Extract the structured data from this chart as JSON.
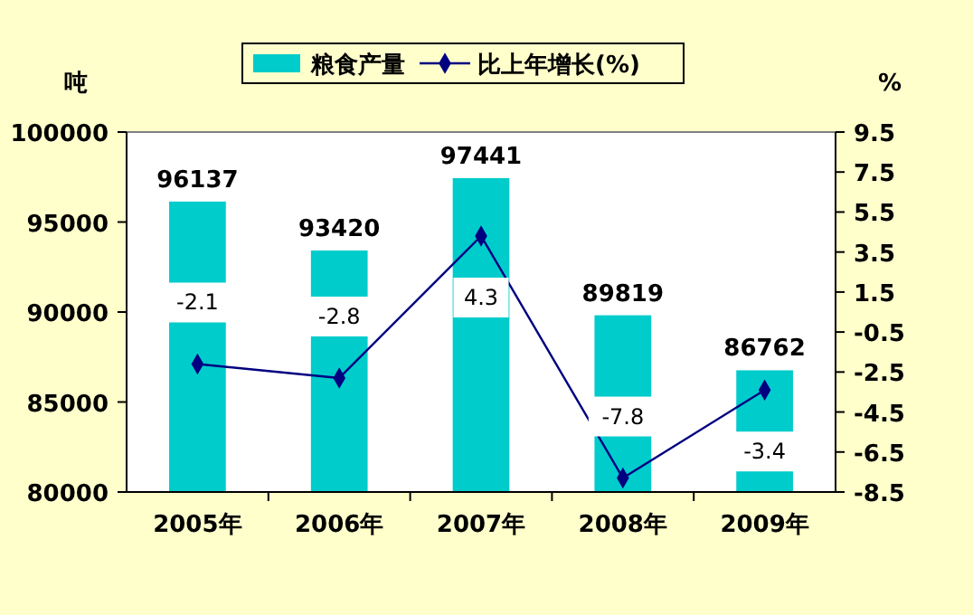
{
  "chart_data": {
    "type": "bar",
    "categories": [
      "2005年",
      "2006年",
      "2007年",
      "2008年",
      "2009年"
    ],
    "series": [
      {
        "name": "粮食产量",
        "color": "#00cccc",
        "values": [
          96137,
          93420,
          97441,
          89819,
          86762
        ]
      },
      {
        "name": "比上年增长(%)",
        "type": "line",
        "axis": "y2",
        "color": "#000080",
        "marker": "diamond",
        "values": [
          -2.1,
          -2.8,
          4.3,
          -7.8,
          -3.4
        ]
      }
    ],
    "ylabel": "吨",
    "y2label": "%",
    "ylim": [
      80000,
      100000
    ],
    "yticks": [
      80000,
      85000,
      90000,
      95000,
      100000
    ],
    "y2lim": [
      -8.5,
      9.5
    ],
    "y2ticks": [
      -8.5,
      -6.5,
      -4.5,
      -2.5,
      -0.5,
      1.5,
      3.5,
      5.5,
      7.5,
      9.5
    ],
    "data_labels": true,
    "legend": "top",
    "grid": false
  }
}
